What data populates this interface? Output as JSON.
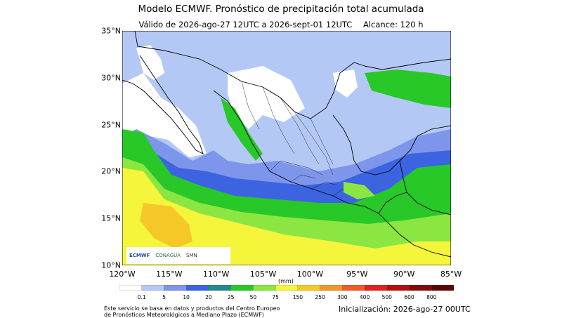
{
  "header": {
    "title": "Modelo ECMWF. Pronóstico de precipitación total acumulada",
    "valid": "Válido de 2026-ago-27 12UTC a 2026-sept-01 12UTC",
    "range": "Alcance: 120 h"
  },
  "map": {
    "lat_labels": [
      "35°N",
      "30°N",
      "25°N",
      "20°N",
      "15°N",
      "10°N"
    ],
    "lon_labels": [
      "120°W",
      "115°W",
      "110°W",
      "105°W",
      "100°W",
      "95°W",
      "90°W",
      "85°W"
    ],
    "lat_range": [
      10,
      35
    ],
    "lon_range": [
      -120,
      -85
    ]
  },
  "legend": {
    "unit": "(mm)",
    "ticks": [
      "0.1",
      "5",
      "10",
      "20",
      "25",
      "50",
      "75",
      "150",
      "250",
      "300",
      "400",
      "500",
      "600",
      "800"
    ],
    "colors": [
      "#ffffff",
      "#b4c8f5",
      "#7d96eb",
      "#3c64e1",
      "#1e8c8c",
      "#28c828",
      "#8ce641",
      "#f5f53c",
      "#f5c828",
      "#f0962d",
      "#f05a28",
      "#e61e1e",
      "#b40f0f",
      "#820a0a",
      "#5a0505"
    ]
  },
  "logos": {
    "ecmwf": "ECMWF",
    "conagua": "CONAGUA",
    "smn": "SMN"
  },
  "footer": {
    "note_line1": "Este servicio se basa en datos y productos del Centro Europeo",
    "note_line2": "de Pronósticos Meteorológicos a Mediano Plazo (ECMWF)",
    "init": "Inicialización: 2026-ago-27 00UTC"
  }
}
